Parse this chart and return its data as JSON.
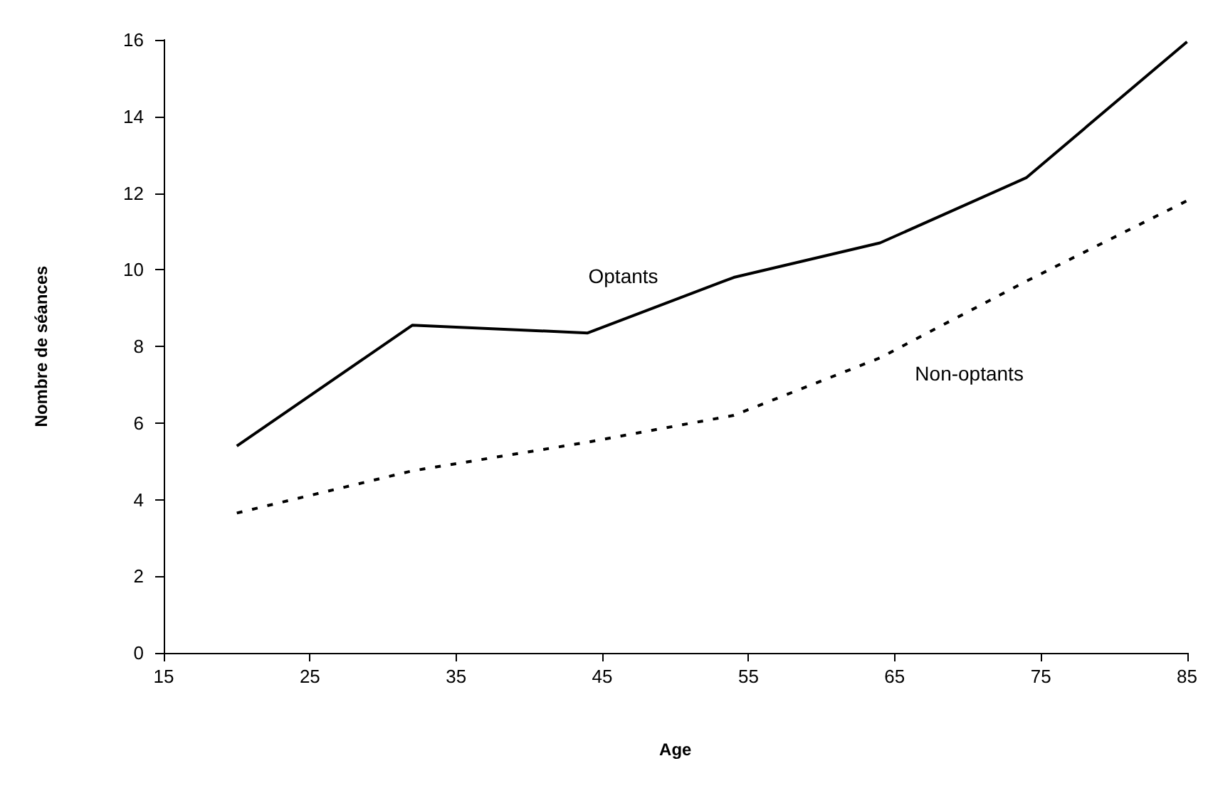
{
  "chart_data": {
    "type": "line",
    "xlabel": "Age",
    "ylabel": "Nombre de séances",
    "x": [
      20,
      32,
      44,
      54,
      64,
      74,
      85
    ],
    "series": [
      {
        "name": "Optants",
        "color": "#000000",
        "line_style": "solid",
        "values": [
          5.4,
          8.55,
          8.35,
          9.8,
          10.7,
          12.4,
          15.95
        ]
      },
      {
        "name": "Non-optants",
        "color": "#000000",
        "line_style": "dashed",
        "values": [
          3.65,
          4.75,
          5.5,
          6.2,
          7.7,
          9.7,
          11.8
        ]
      }
    ],
    "xlim": [
      15,
      85
    ],
    "xticks": [
      15,
      25,
      35,
      45,
      55,
      65,
      75,
      85
    ],
    "ylim": [
      0,
      16
    ],
    "yticks": [
      0,
      2,
      4,
      6,
      8,
      10,
      12,
      14,
      16
    ],
    "grid": false,
    "legend": false,
    "marker": "none"
  }
}
